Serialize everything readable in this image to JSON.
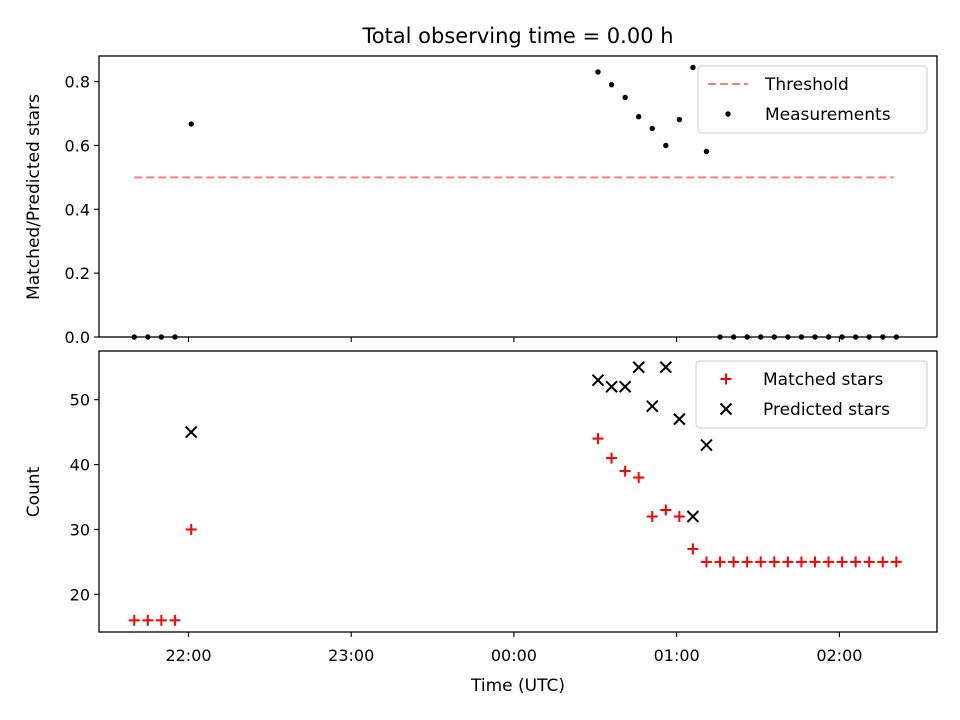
{
  "chart_data": [
    {
      "type": "scatter",
      "title": "Total observing time = 0.00 h",
      "xlabel": "",
      "ylabel": "Matched/Predicted stars",
      "x_unit": "time (UTC)",
      "xlim": [
        "21:27",
        "02:36"
      ],
      "ylim": [
        0,
        0.88
      ],
      "yticks": [
        "0.0",
        "0.2",
        "0.4",
        "0.6",
        "0.8"
      ],
      "ytick_values": [
        0,
        0.2,
        0.4,
        0.6,
        0.8
      ],
      "legend_position": "top-right",
      "grid": false,
      "threshold": {
        "name": "Threshold",
        "value": 0.5,
        "x_start": "21:40",
        "x_end": "02:20",
        "color": "#ff8080",
        "style": "dashed"
      },
      "series": [
        {
          "name": "Measurements",
          "color": "#000000",
          "marker": "dot",
          "points": [
            {
              "x": "21:40",
              "y": 0.0
            },
            {
              "x": "21:45",
              "y": 0.0
            },
            {
              "x": "21:50",
              "y": 0.0
            },
            {
              "x": "21:55",
              "y": 0.0
            },
            {
              "x": "22:01",
              "y": 0.667
            },
            {
              "x": "00:31",
              "y": 0.83
            },
            {
              "x": "00:36",
              "y": 0.79
            },
            {
              "x": "00:41",
              "y": 0.75
            },
            {
              "x": "00:46",
              "y": 0.69
            },
            {
              "x": "00:51",
              "y": 0.653
            },
            {
              "x": "00:56",
              "y": 0.6
            },
            {
              "x": "01:01",
              "y": 0.681
            },
            {
              "x": "01:06",
              "y": 0.844
            },
            {
              "x": "01:11",
              "y": 0.581
            },
            {
              "x": "01:16",
              "y": 0.0
            },
            {
              "x": "01:21",
              "y": 0.0
            },
            {
              "x": "01:26",
              "y": 0.0
            },
            {
              "x": "01:31",
              "y": 0.0
            },
            {
              "x": "01:36",
              "y": 0.0
            },
            {
              "x": "01:41",
              "y": 0.0
            },
            {
              "x": "01:46",
              "y": 0.0
            },
            {
              "x": "01:51",
              "y": 0.0
            },
            {
              "x": "01:56",
              "y": 0.0
            },
            {
              "x": "02:01",
              "y": 0.0
            },
            {
              "x": "02:06",
              "y": 0.0
            },
            {
              "x": "02:11",
              "y": 0.0
            },
            {
              "x": "02:16",
              "y": 0.0
            },
            {
              "x": "02:21",
              "y": 0.0
            }
          ]
        }
      ]
    },
    {
      "type": "scatter",
      "title": "",
      "xlabel": "Time (UTC)",
      "ylabel": "Count",
      "x_unit": "time (UTC)",
      "xlim": [
        "21:27",
        "02:36"
      ],
      "ylim": [
        14.2,
        57.5
      ],
      "yticks": [
        "20",
        "30",
        "40",
        "50"
      ],
      "ytick_values": [
        20,
        30,
        40,
        50
      ],
      "xticks": [
        "22:00",
        "23:00",
        "00:00",
        "01:00",
        "02:00"
      ],
      "xtick_values": [
        "22:00",
        "23:00",
        "00:00",
        "01:00",
        "02:00"
      ],
      "legend_position": "top-right",
      "grid": false,
      "series": [
        {
          "name": "Matched stars",
          "color": "#ff0000",
          "marker": "plus",
          "points": [
            {
              "x": "21:40",
              "y": 16
            },
            {
              "x": "21:45",
              "y": 16
            },
            {
              "x": "21:50",
              "y": 16
            },
            {
              "x": "21:55",
              "y": 16
            },
            {
              "x": "22:01",
              "y": 30
            },
            {
              "x": "00:31",
              "y": 44
            },
            {
              "x": "00:36",
              "y": 41
            },
            {
              "x": "00:41",
              "y": 39
            },
            {
              "x": "00:46",
              "y": 38
            },
            {
              "x": "00:51",
              "y": 32
            },
            {
              "x": "00:56",
              "y": 33
            },
            {
              "x": "01:01",
              "y": 32
            },
            {
              "x": "01:06",
              "y": 27
            },
            {
              "x": "01:11",
              "y": 25
            },
            {
              "x": "01:16",
              "y": 25
            },
            {
              "x": "01:21",
              "y": 25
            },
            {
              "x": "01:26",
              "y": 25
            },
            {
              "x": "01:31",
              "y": 25
            },
            {
              "x": "01:36",
              "y": 25
            },
            {
              "x": "01:41",
              "y": 25
            },
            {
              "x": "01:46",
              "y": 25
            },
            {
              "x": "01:51",
              "y": 25
            },
            {
              "x": "01:56",
              "y": 25
            },
            {
              "x": "02:01",
              "y": 25
            },
            {
              "x": "02:06",
              "y": 25
            },
            {
              "x": "02:11",
              "y": 25
            },
            {
              "x": "02:16",
              "y": 25
            },
            {
              "x": "02:21",
              "y": 25
            }
          ]
        },
        {
          "name": "Predicted stars",
          "color": "#000000",
          "marker": "x",
          "points": [
            {
              "x": "22:01",
              "y": 45
            },
            {
              "x": "00:31",
              "y": 53
            },
            {
              "x": "00:36",
              "y": 52
            },
            {
              "x": "00:41",
              "y": 52
            },
            {
              "x": "00:46",
              "y": 55
            },
            {
              "x": "00:51",
              "y": 49
            },
            {
              "x": "00:56",
              "y": 55
            },
            {
              "x": "01:01",
              "y": 47
            },
            {
              "x": "01:06",
              "y": 32
            },
            {
              "x": "01:11",
              "y": 43
            }
          ]
        }
      ]
    }
  ]
}
